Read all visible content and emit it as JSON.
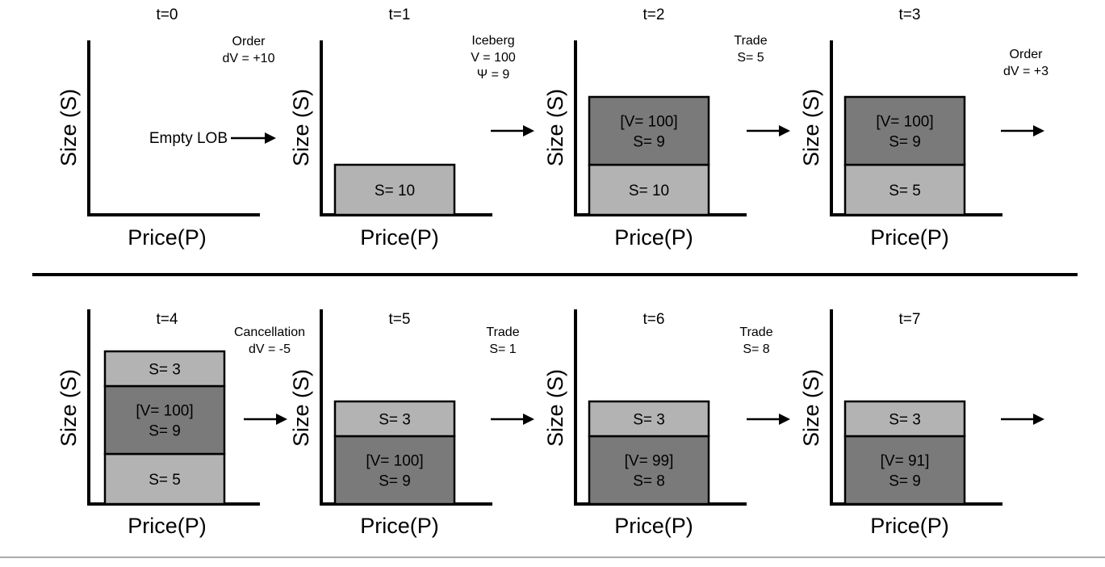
{
  "diagram": {
    "x_axis_label": "Price(P)",
    "y_axis_label": "Size (S)",
    "empty_note": "Empty LOB",
    "panels": [
      {
        "time": "t=0",
        "blocks": []
      },
      {
        "time": "t=1",
        "blocks": [
          {
            "lines": [
              "S= 10"
            ],
            "shade": "light"
          }
        ]
      },
      {
        "time": "t=2",
        "blocks": [
          {
            "lines": [
              "S= 10"
            ],
            "shade": "light"
          },
          {
            "lines": [
              "[V= 100]",
              "S= 9"
            ],
            "shade": "dark"
          }
        ]
      },
      {
        "time": "t=3",
        "blocks": [
          {
            "lines": [
              "S= 5"
            ],
            "shade": "light"
          },
          {
            "lines": [
              "[V= 100]",
              "S= 9"
            ],
            "shade": "dark"
          }
        ]
      },
      {
        "time": "t=4",
        "blocks": [
          {
            "lines": [
              "S= 5"
            ],
            "shade": "light"
          },
          {
            "lines": [
              "[V= 100]",
              "S= 9"
            ],
            "shade": "dark"
          },
          {
            "lines": [
              "S= 3"
            ],
            "shade": "light"
          }
        ]
      },
      {
        "time": "t=5",
        "blocks": [
          {
            "lines": [
              "[V= 100]",
              "S= 9"
            ],
            "shade": "dark"
          },
          {
            "lines": [
              "S= 3"
            ],
            "shade": "light"
          }
        ]
      },
      {
        "time": "t=6",
        "blocks": [
          {
            "lines": [
              "[V= 99]",
              "S= 8"
            ],
            "shade": "dark"
          },
          {
            "lines": [
              "S= 3"
            ],
            "shade": "light"
          }
        ]
      },
      {
        "time": "t=7",
        "blocks": [
          {
            "lines": [
              "[V= 91]",
              "S= 9"
            ],
            "shade": "dark"
          },
          {
            "lines": [
              "S= 3"
            ],
            "shade": "light"
          }
        ]
      }
    ],
    "events": [
      {
        "lines": [
          "Order",
          "dV = +10"
        ]
      },
      {
        "lines": [
          "Iceberg",
          "V = 100",
          "Ψ = 9"
        ]
      },
      {
        "lines": [
          "Trade",
          "S= 5"
        ]
      },
      {
        "lines": [
          "Order",
          "dV = +3"
        ]
      },
      {
        "lines": [
          "Cancellation",
          "dV = -5"
        ]
      },
      {
        "lines": [
          "Trade",
          "S= 1"
        ]
      },
      {
        "lines": [
          "Trade",
          "S= 8"
        ]
      }
    ]
  }
}
